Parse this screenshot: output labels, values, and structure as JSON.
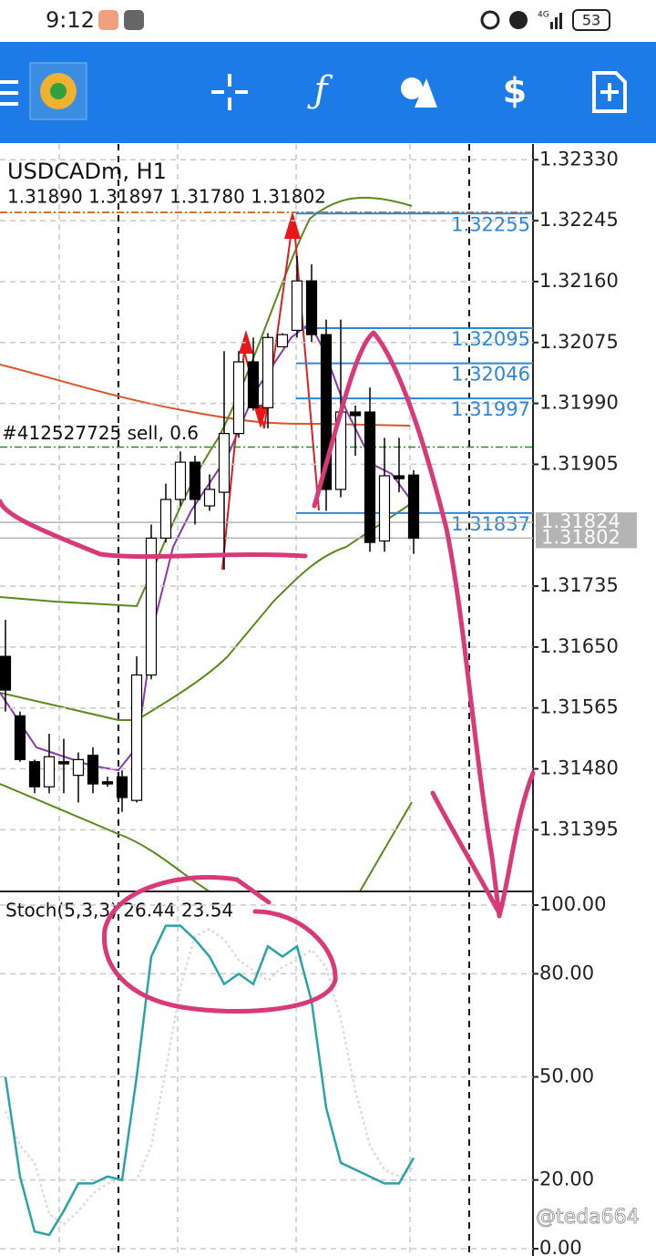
{
  "status_bar": {
    "time": "9:12",
    "network": "4G",
    "battery": "53"
  },
  "chart_data": [
    {
      "type": "candlestick",
      "title": "USDCADm, H1",
      "subtitle": "1.31890 1.31897 1.31780 1.31802",
      "open": [
        1.31637,
        1.31554,
        1.3149,
        1.31455,
        1.3149,
        1.31471,
        1.31499,
        1.31462,
        1.31469,
        1.31436,
        1.31611,
        1.31802,
        1.31856,
        1.31908,
        1.31847,
        1.31866,
        1.31948,
        1.32048,
        1.31984,
        1.32069,
        1.32092,
        1.32161,
        1.32086,
        1.3187,
        1.31978,
        1.31978,
        1.31798,
        1.31889,
        1.3189
      ],
      "high": [
        1.31688,
        1.3156,
        1.31493,
        1.31529,
        1.31522,
        1.31503,
        1.3151,
        1.31469,
        1.31478,
        1.31637,
        1.31821,
        1.31878,
        1.31923,
        1.31917,
        1.31891,
        1.32063,
        1.32063,
        1.32082,
        1.32088,
        1.32088,
        1.32196,
        1.32184,
        1.32107,
        1.32107,
        1.31987,
        1.32012,
        1.31942,
        1.31942,
        1.31897
      ],
      "low": [
        1.3156,
        1.3149,
        1.31446,
        1.31446,
        1.31446,
        1.31433,
        1.31446,
        1.31455,
        1.3142,
        1.31433,
        1.31605,
        1.31796,
        1.31847,
        1.31821,
        1.3184,
        1.31758,
        1.31942,
        1.3198,
        1.31955,
        1.32069,
        1.32082,
        1.32076,
        1.3184,
        1.31859,
        1.31917,
        1.31783,
        1.31783,
        1.31866,
        1.3178
      ],
      "close": [
        1.3159,
        1.31493,
        1.31455,
        1.31497,
        1.31487,
        1.31493,
        1.31459,
        1.31459,
        1.3144,
        1.31611,
        1.31802,
        1.31856,
        1.31908,
        1.31856,
        1.3187,
        1.31948,
        1.32048,
        1.31984,
        1.32082,
        1.32086,
        1.32161,
        1.32086,
        1.3187,
        1.31978,
        1.31973,
        1.31796,
        1.31889,
        1.31885,
        1.31802
      ],
      "up_color": "#ffffff",
      "down_color": "#000000",
      "ylim": [
        1.31309,
        1.32352
      ],
      "yticks": [
        {
          "value": 1.3233,
          "label": "1.32330"
        },
        1.32245,
        {
          "value": 1.3216,
          "label": "1.32160"
        },
        1.32075,
        {
          "value": 1.3199,
          "label": "1.31990"
        },
        1.31905,
        1.31735,
        {
          "value": 1.3165,
          "label": "1.31650"
        },
        1.31565,
        {
          "value": 1.3148,
          "label": "1.31480"
        },
        1.31395
      ],
      "grid": true,
      "levels": [
        1.32255,
        1.32095,
        1.32046,
        1.31997,
        1.31837
      ],
      "level_color": "#2f86d6",
      "price_lines": [
        1.31824,
        1.31802
      ],
      "order": {
        "label": "#412527725 sell, 0.6",
        "price": 1.31929
      },
      "order_color": "#2e8b2e"
    },
    {
      "type": "line",
      "title": "Stoch(5,3,3) 26.44 23.54",
      "series": [
        {
          "color": "#e9d6d6",
          "values": [
            40,
            30,
            25,
            10,
            7,
            11,
            16,
            19,
            20,
            20,
            30,
            52,
            76,
            91,
            93,
            90,
            84,
            81,
            78,
            82,
            84,
            87,
            82,
            67,
            46,
            30,
            23,
            21,
            23.54
          ]
        },
        {
          "color": "#2aa3a8",
          "values": [
            50,
            21,
            5,
            4,
            11,
            19,
            19,
            21,
            20,
            50,
            85,
            94,
            94,
            90,
            85,
            77,
            80,
            77,
            88,
            85,
            88,
            72,
            41,
            25,
            23,
            21,
            19,
            19,
            26.44
          ]
        }
      ],
      "ylim": [
        0,
        100
      ],
      "yticks": [
        {
          "value": 100,
          "label": "100.00"
        },
        {
          "value": 80,
          "label": "80.00"
        },
        {
          "value": 50,
          "label": "50.00"
        },
        {
          "value": 20,
          "label": "20.00"
        },
        {
          "value": 0,
          "label": "0.00"
        }
      ],
      "grid": true
    }
  ],
  "watermark": "@teda664"
}
